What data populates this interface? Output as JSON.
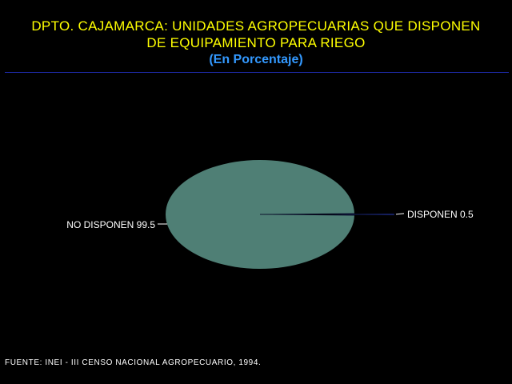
{
  "title_line1": "DPTO. CAJAMARCA: UNIDADES AGROPECUARIAS QUE DISPONEN",
  "title_line2": "DE EQUIPAMIENTO PARA RIEGO",
  "subtitle": "(En Porcentaje)",
  "source": "FUENTE: INEI - III CENSO NACIONAL AGROPECUARIO, 1994.",
  "colors": {
    "title": "#ffff00",
    "subtitle": "#3399ff",
    "background": "#000000"
  },
  "chart_data": {
    "type": "pie",
    "title": "DPTO. CAJAMARCA: UNIDADES AGROPECUARIAS QUE DISPONEN DE EQUIPAMIENTO PARA RIEGO",
    "subtitle": "(En Porcentaje)",
    "categories": [
      "NO DISPONEN",
      "DISPONEN"
    ],
    "values": [
      99.5,
      0.5
    ],
    "labels": [
      "NO DISPONEN 99.5",
      "DISPONEN 0.5"
    ],
    "colors": [
      "#4f7f75",
      "#1f2e8c"
    ],
    "exploded": [
      false,
      true
    ],
    "legend": "none"
  }
}
